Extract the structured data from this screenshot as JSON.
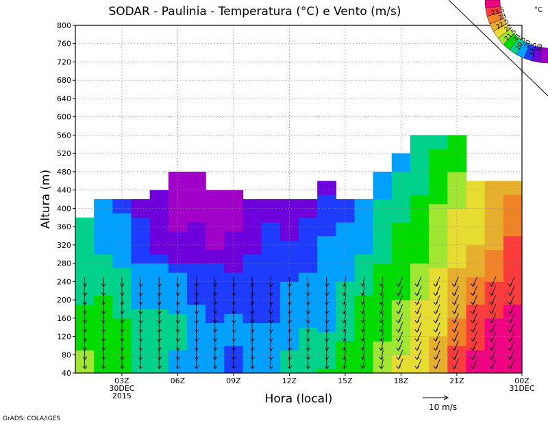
{
  "chart_data": {
    "type": "heatmap",
    "title": "SODAR - Paulinia - Temperatura (°C) e Vento (m/s)",
    "xlabel": "Hora (local)",
    "ylabel": "Altura (m)",
    "ylim": [
      40,
      800
    ],
    "xlim": [
      1,
      24
    ],
    "grid": true,
    "y_ticks": [
      40,
      80,
      120,
      160,
      200,
      240,
      280,
      320,
      360,
      400,
      440,
      480,
      520,
      560,
      600,
      640,
      680,
      720,
      760,
      800
    ],
    "x_ticks": [
      {
        "x": 3,
        "label": "03Z",
        "sublabel": "30DEC",
        "sublabel2": "2015"
      },
      {
        "x": 6,
        "label": "06Z"
      },
      {
        "x": 9,
        "label": "09Z"
      },
      {
        "x": 12,
        "label": "12Z"
      },
      {
        "x": 15,
        "label": "15Z"
      },
      {
        "x": 18,
        "label": "18Z"
      },
      {
        "x": 21,
        "label": "21Z"
      },
      {
        "x": 24,
        "label": "00Z",
        "sublabel": "31DEC"
      }
    ],
    "colorbar": {
      "unit": "°C",
      "levels": [
        "19",
        "19.5",
        "20",
        "20.5",
        "21",
        "21.5",
        "22",
        "22.5",
        "23",
        "23.5"
      ],
      "colors": [
        "#a000c8",
        "#6e00dc",
        "#1e3cff",
        "#00a0ff",
        "#00d28c",
        "#00dc00",
        "#a0e632",
        "#e6dc32",
        "#e6af2d",
        "#f08228",
        "#fa3c3c",
        "#f00082"
      ]
    },
    "top_heights": [
      380,
      420,
      420,
      420,
      440,
      480,
      480,
      440,
      440,
      420,
      420,
      420,
      420,
      460,
      420,
      420,
      480,
      520,
      560,
      560,
      560,
      460,
      460,
      460
    ],
    "wind_reference": {
      "speed": 10,
      "label": "10 m/s"
    }
  },
  "credit": "GrADS: COLA/IGES"
}
